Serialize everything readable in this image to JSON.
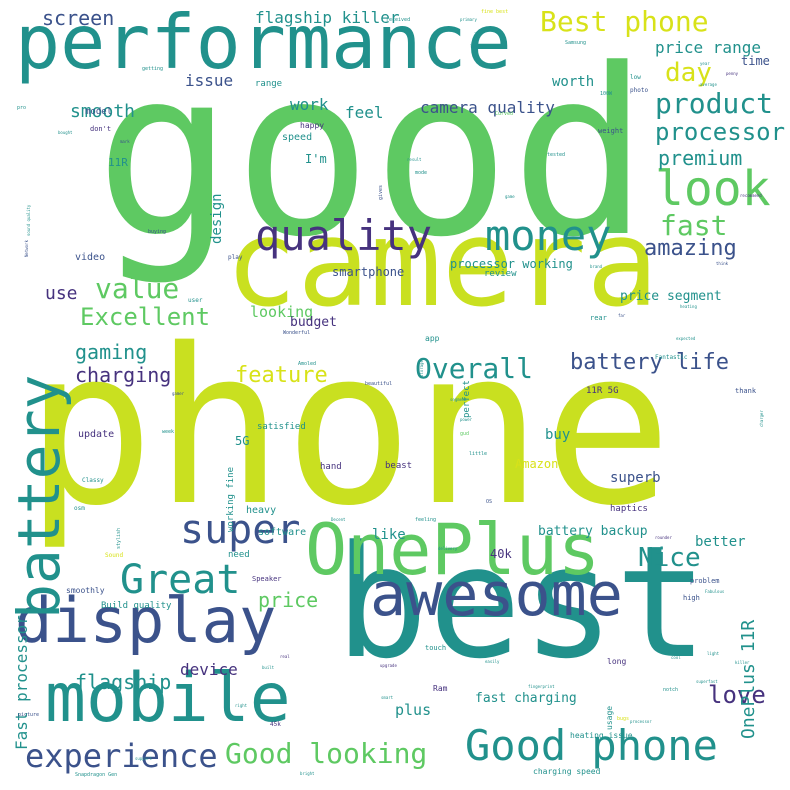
{
  "colors": {
    "background": "#ffffff",
    "lime": "#c9e020",
    "yellow": "#d8e219",
    "green": "#5ec962",
    "teal": "#21918c",
    "blue": "#3b528b",
    "indigo": "#46327e",
    "purple": "#440154"
  },
  "words": [
    {
      "text": "good",
      "color": "green"
    },
    {
      "text": "phone",
      "color": "lime"
    },
    {
      "text": "camera",
      "color": "lime"
    },
    {
      "text": "best",
      "color": "teal"
    },
    {
      "text": "performance",
      "color": "teal"
    },
    {
      "text": "awesome",
      "color": "blue"
    },
    {
      "text": "display",
      "color": "blue"
    },
    {
      "text": "mobile",
      "color": "teal"
    },
    {
      "text": "OnePlus",
      "color": "green"
    },
    {
      "text": "battery",
      "color": "teal"
    },
    {
      "text": "quality",
      "color": "indigo"
    },
    {
      "text": "money",
      "color": "teal"
    },
    {
      "text": "look",
      "color": "green"
    },
    {
      "text": "Great",
      "color": "teal"
    },
    {
      "text": "super",
      "color": "blue"
    },
    {
      "text": "Good phone",
      "color": "teal"
    },
    {
      "text": "experience",
      "color": "blue"
    },
    {
      "text": "Good looking",
      "color": "green"
    },
    {
      "text": "Best phone",
      "color": "yellow"
    },
    {
      "text": "product",
      "color": "teal"
    },
    {
      "text": "processor",
      "color": "teal"
    },
    {
      "text": "Overall",
      "color": "teal"
    },
    {
      "text": "Nice",
      "color": "teal"
    },
    {
      "text": "value",
      "color": "green"
    },
    {
      "text": "Excellent",
      "color": "green"
    },
    {
      "text": "fast",
      "color": "green"
    },
    {
      "text": "premium",
      "color": "teal"
    },
    {
      "text": "day",
      "color": "yellow"
    },
    {
      "text": "amazing",
      "color": "blue"
    },
    {
      "text": "battery life",
      "color": "blue"
    },
    {
      "text": "feature",
      "color": "yellow"
    },
    {
      "text": "gaming",
      "color": "teal"
    },
    {
      "text": "charging",
      "color": "indigo"
    },
    {
      "text": "love",
      "color": "indigo"
    },
    {
      "text": "flagship",
      "color": "teal"
    },
    {
      "text": "price",
      "color": "green"
    },
    {
      "text": "OnePlus 11R",
      "color": "teal"
    },
    {
      "text": "Fast processor",
      "color": "teal"
    },
    {
      "text": "screen",
      "color": "blue"
    },
    {
      "text": "smooth",
      "color": "teal"
    },
    {
      "text": "flagship killer",
      "color": "teal"
    },
    {
      "text": "price range",
      "color": "teal"
    },
    {
      "text": "camera quality",
      "color": "blue"
    },
    {
      "text": "issue",
      "color": "blue"
    },
    {
      "text": "work",
      "color": "teal"
    },
    {
      "text": "feel",
      "color": "teal"
    },
    {
      "text": "worth",
      "color": "teal"
    },
    {
      "text": "time",
      "color": "blue"
    },
    {
      "text": "use",
      "color": "indigo"
    },
    {
      "text": "looking",
      "color": "green"
    },
    {
      "text": "budget",
      "color": "indigo"
    },
    {
      "text": "price segment",
      "color": "teal"
    },
    {
      "text": "device",
      "color": "indigo"
    },
    {
      "text": "plus",
      "color": "teal"
    },
    {
      "text": "fast charging",
      "color": "teal"
    },
    {
      "text": "battery backup",
      "color": "teal"
    },
    {
      "text": "superb",
      "color": "blue"
    },
    {
      "text": "buy",
      "color": "teal"
    },
    {
      "text": "Amazon",
      "color": "yellow"
    },
    {
      "text": "like",
      "color": "teal"
    },
    {
      "text": "better",
      "color": "teal"
    },
    {
      "text": "40k",
      "color": "indigo"
    },
    {
      "text": "5G",
      "color": "teal"
    },
    {
      "text": "design",
      "color": "teal"
    },
    {
      "text": "processor working",
      "color": "teal"
    },
    {
      "text": "smartphone",
      "color": "blue"
    },
    {
      "text": "review",
      "color": "teal"
    },
    {
      "text": "video",
      "color": "blue"
    },
    {
      "text": "I'm",
      "color": "teal"
    },
    {
      "text": "speed",
      "color": "teal"
    },
    {
      "text": "happy",
      "color": "indigo"
    },
    {
      "text": "model",
      "color": "blue"
    },
    {
      "text": "range",
      "color": "teal"
    },
    {
      "text": "11R",
      "color": "teal"
    },
    {
      "text": "11R 5G",
      "color": "indigo"
    },
    {
      "text": "update",
      "color": "indigo"
    },
    {
      "text": "satisfied",
      "color": "teal"
    },
    {
      "text": "software",
      "color": "teal"
    },
    {
      "text": "heavy",
      "color": "teal"
    },
    {
      "text": "need",
      "color": "teal"
    },
    {
      "text": "hand",
      "color": "indigo"
    },
    {
      "text": "beast",
      "color": "indigo"
    },
    {
      "text": "haptics",
      "color": "indigo"
    },
    {
      "text": "smoothly",
      "color": "blue"
    },
    {
      "text": "Build quality",
      "color": "teal"
    },
    {
      "text": "Speaker",
      "color": "indigo"
    },
    {
      "text": "problem",
      "color": "blue"
    },
    {
      "text": "high",
      "color": "blue"
    },
    {
      "text": "long",
      "color": "indigo"
    },
    {
      "text": "usage",
      "color": "teal"
    },
    {
      "text": "heating issue",
      "color": "teal"
    },
    {
      "text": "charging speed",
      "color": "teal"
    },
    {
      "text": "touch",
      "color": "teal"
    },
    {
      "text": "Ram",
      "color": "indigo"
    },
    {
      "text": "45k",
      "color": "indigo"
    },
    {
      "text": "user",
      "color": "teal"
    },
    {
      "text": "perfect",
      "color": "teal"
    },
    {
      "text": "rear",
      "color": "teal"
    },
    {
      "text": "thank",
      "color": "blue"
    },
    {
      "text": "app",
      "color": "teal"
    },
    {
      "text": "Fantastic",
      "color": "teal"
    },
    {
      "text": "Amoled",
      "color": "teal"
    },
    {
      "text": "Wonderful",
      "color": "blue"
    },
    {
      "text": "weight",
      "color": "blue"
    },
    {
      "text": "low",
      "color": "teal"
    },
    {
      "text": "photo",
      "color": "blue"
    },
    {
      "text": "Samsung",
      "color": "teal"
    },
    {
      "text": "getting",
      "color": "teal"
    },
    {
      "text": "fine best",
      "color": "yellow"
    },
    {
      "text": "Curved",
      "color": "green"
    },
    {
      "text": "tested",
      "color": "teal"
    },
    {
      "text": "mode",
      "color": "teal"
    },
    {
      "text": "result",
      "color": "teal"
    },
    {
      "text": "gives",
      "color": "blue"
    },
    {
      "text": "recommend",
      "color": "indigo"
    },
    {
      "text": "Classy",
      "color": "teal"
    },
    {
      "text": "Sound",
      "color": "yellow"
    },
    {
      "text": "delivery",
      "color": "teal"
    },
    {
      "text": "Fabulous",
      "color": "teal"
    },
    {
      "text": "rounder",
      "color": "indigo"
    },
    {
      "text": "feeling",
      "color": "teal"
    },
    {
      "text": "Decent",
      "color": "teal"
    },
    {
      "text": "OS",
      "color": "blue"
    },
    {
      "text": "little",
      "color": "teal"
    },
    {
      "text": "gud",
      "color": "green"
    },
    {
      "text": "power",
      "color": "teal"
    },
    {
      "text": "segment",
      "color": "teal"
    },
    {
      "text": "beautiful",
      "color": "blue"
    },
    {
      "text": "storage",
      "color": "teal"
    },
    {
      "text": "heating",
      "color": "teal"
    },
    {
      "text": "expected",
      "color": "teal"
    },
    {
      "text": "superfast",
      "color": "teal"
    },
    {
      "text": "notch",
      "color": "teal"
    },
    {
      "text": "killer",
      "color": "teal"
    },
    {
      "text": "light",
      "color": "teal"
    },
    {
      "text": "cool",
      "color": "teal"
    },
    {
      "text": "easily",
      "color": "teal"
    },
    {
      "text": "upgrade",
      "color": "indigo"
    },
    {
      "text": "smart",
      "color": "teal"
    },
    {
      "text": "fingerprint",
      "color": "teal"
    },
    {
      "text": "bugs",
      "color": "yellow"
    },
    {
      "text": "processor",
      "color": "teal"
    },
    {
      "text": "Snapdragon Gen",
      "color": "teal"
    },
    {
      "text": "picture",
      "color": "blue"
    },
    {
      "text": "support",
      "color": "teal"
    },
    {
      "text": "right",
      "color": "teal"
    },
    {
      "text": "bright",
      "color": "teal"
    },
    {
      "text": "built",
      "color": "teal"
    },
    {
      "text": "real",
      "color": "indigo"
    },
    {
      "text": "game",
      "color": "teal"
    },
    {
      "text": "charger",
      "color": "teal"
    },
    {
      "text": "gamer",
      "color": "blue"
    },
    {
      "text": "bought",
      "color": "teal"
    },
    {
      "text": "don't",
      "color": "indigo"
    },
    {
      "text": "pro",
      "color": "teal"
    },
    {
      "text": "play",
      "color": "blue"
    },
    {
      "text": "think",
      "color": "blue"
    },
    {
      "text": "buying",
      "color": "blue"
    },
    {
      "text": "Network",
      "color": "blue"
    },
    {
      "text": "sound quality",
      "color": "teal"
    },
    {
      "text": "year",
      "color": "teal"
    },
    {
      "text": "penny",
      "color": "indigo"
    },
    {
      "text": "average",
      "color": "teal"
    },
    {
      "text": "levels",
      "color": "teal"
    },
    {
      "text": "charged",
      "color": "teal"
    },
    {
      "text": "primary",
      "color": "teal"
    },
    {
      "text": "received",
      "color": "teal"
    },
    {
      "text": "100W",
      "color": "teal"
    },
    {
      "text": "week",
      "color": "teal"
    },
    {
      "text": "stylish",
      "color": "teal"
    },
    {
      "text": "working fine",
      "color": "teal"
    },
    {
      "text": "mark",
      "color": "blue"
    },
    {
      "text": "osm",
      "color": "teal"
    },
    {
      "text": "far",
      "color": "blue"
    },
    {
      "text": "brand",
      "color": "teal"
    }
  ]
}
